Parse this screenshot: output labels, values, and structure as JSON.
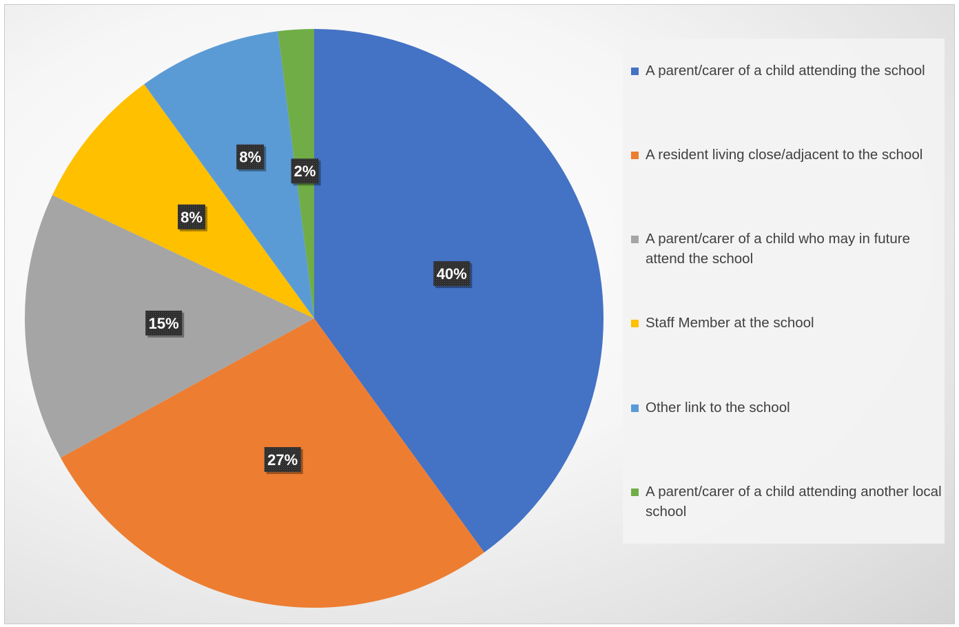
{
  "chart_data": {
    "type": "pie",
    "categories": [
      "A parent/carer of a child attending the school",
      "A resident living close/adjacent to the school",
      "A parent/carer of a child who may in future attend the school",
      "Staff Member at the school",
      "Other link to the school",
      "A parent/carer of a child attending another local school"
    ],
    "values": [
      40,
      27,
      15,
      8,
      8,
      2
    ],
    "data_labels": [
      "40%",
      "27%",
      "15%",
      "8%",
      "8%",
      "2%"
    ],
    "colors": [
      "#4472c4",
      "#ed7d31",
      "#a5a5a5",
      "#ffc000",
      "#5b9bd5",
      "#70ad47"
    ],
    "legend_position": "right",
    "start_angle": "top, clockwise"
  }
}
